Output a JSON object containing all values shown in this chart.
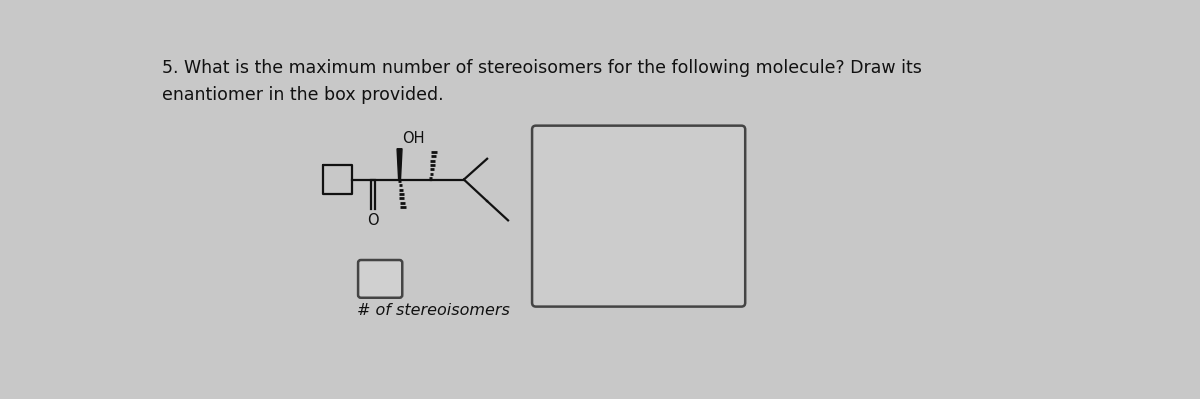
{
  "background_color": "#c8c8c8",
  "title_line1": "5. What is the maximum number of stereoisomers for the following molecule? Draw its",
  "title_line2": "enantiomer in the box provided.",
  "label_oh": "OH",
  "label_o": "O",
  "label_stereoisomers": "# of stereoisomers",
  "text_color": "#111111",
  "bond_color": "#111111",
  "box_bg": "#d4d4d4",
  "box_border": "#444444",
  "font_size_title": 12.5,
  "font_size_label": 10.5,
  "font_size_stereo_label": 11.5
}
